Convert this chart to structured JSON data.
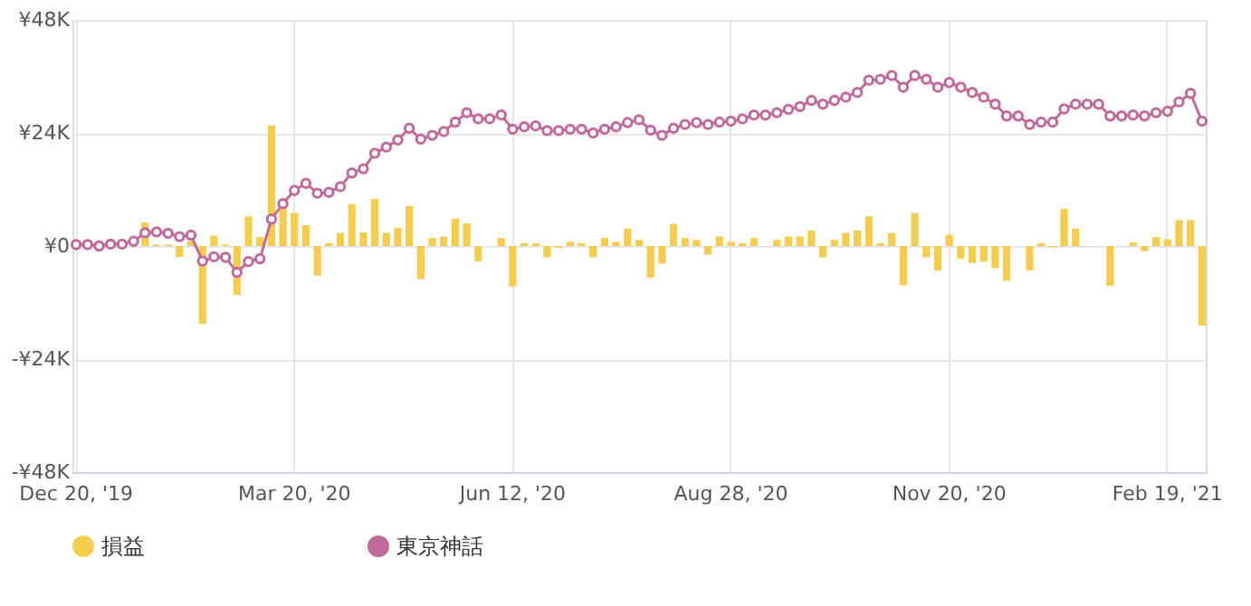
{
  "chart_data": {
    "type": "bar",
    "categories": [
      "Dec 20, '19",
      null,
      null,
      null,
      null,
      null,
      null,
      null,
      null,
      null,
      null,
      null,
      null,
      null,
      null,
      null,
      null,
      null,
      null,
      "Mar 20, '20",
      null,
      null,
      null,
      null,
      null,
      null,
      null,
      null,
      null,
      null,
      null,
      null,
      null,
      null,
      null,
      null,
      null,
      null,
      "Jun 12, '20",
      null,
      null,
      null,
      null,
      null,
      null,
      null,
      null,
      null,
      null,
      null,
      null,
      null,
      null,
      null,
      null,
      null,
      null,
      "Aug 28, '20",
      null,
      null,
      null,
      null,
      null,
      null,
      null,
      null,
      null,
      null,
      null,
      null,
      null,
      null,
      null,
      null,
      null,
      null,
      "Nov 20, '20",
      null,
      null,
      null,
      null,
      null,
      null,
      null,
      null,
      null,
      null,
      null,
      null,
      null,
      null,
      null,
      null,
      null,
      null,
      "Feb 19, '21",
      null,
      null,
      null
    ],
    "series": [
      {
        "name": "損益",
        "color": "#f5cd4e",
        "values": [
          200,
          0,
          0,
          0,
          0,
          0,
          5000,
          300,
          300,
          -2300,
          1000,
          -16500,
          2200,
          300,
          -10400,
          6300,
          1900,
          25600,
          8500,
          7000,
          4400,
          -6300,
          600,
          2800,
          8900,
          2900,
          10000,
          2800,
          3900,
          8500,
          -7000,
          1700,
          2000,
          5800,
          4800,
          -3300,
          0,
          1700,
          -8600,
          600,
          600,
          -2400,
          -400,
          900,
          600,
          -2400,
          1700,
          900,
          3700,
          1300,
          -6700,
          -3700,
          4700,
          1700,
          1300,
          -1800,
          2000,
          900,
          600,
          1700,
          0,
          1300,
          2000,
          2000,
          3300,
          -2400,
          1300,
          2800,
          3300,
          6300,
          600,
          2800,
          -8300,
          7000,
          -2400,
          -5200,
          2400,
          -2700,
          -3600,
          -3300,
          -4700,
          -7400,
          0,
          -5200,
          600,
          -300,
          7900,
          3700,
          0,
          0,
          -8500,
          0,
          800,
          -1100,
          1900,
          1400,
          5500,
          5500,
          -16900
        ]
      },
      {
        "name": "東京神話",
        "type": "line",
        "color": "#c2699b",
        "values": [
          300,
          300,
          0,
          400,
          400,
          1000,
          2800,
          3000,
          2700,
          2000,
          2300,
          -3200,
          -2300,
          -2400,
          -5600,
          -3300,
          -2700,
          5700,
          9000,
          11800,
          13300,
          11200,
          11400,
          12600,
          15500,
          16400,
          19700,
          21000,
          22500,
          25000,
          22700,
          23500,
          24300,
          26300,
          28300,
          27000,
          27000,
          27800,
          24800,
          25300,
          25500,
          24500,
          24500,
          24800,
          24800,
          24000,
          24800,
          25300,
          26200,
          26800,
          24600,
          23500,
          25000,
          25800,
          26200,
          25800,
          26300,
          26500,
          27000,
          27800,
          27800,
          28300,
          29000,
          29600,
          30900,
          30100,
          30900,
          31600,
          32600,
          35200,
          35400,
          36200,
          33700,
          36200,
          35400,
          33700,
          34700,
          33700,
          32600,
          31600,
          30100,
          27600,
          27600,
          25800,
          26300,
          26300,
          29100,
          30100,
          30100,
          30100,
          27600,
          27600,
          27800,
          27600,
          28300,
          28600,
          30600,
          32400,
          26500
        ]
      }
    ],
    "ylim": [
      -48000,
      48000
    ],
    "yticks": [
      {
        "value": -48000,
        "label": "-¥48K"
      },
      {
        "value": -24000,
        "label": "-¥24K"
      },
      {
        "value": 0,
        "label": "¥0"
      },
      {
        "value": 24000,
        "label": "¥24K"
      },
      {
        "value": 48000,
        "label": "¥48K"
      }
    ],
    "grid": true,
    "legend": "bottom",
    "marker": "circle",
    "line_style": "solid"
  }
}
